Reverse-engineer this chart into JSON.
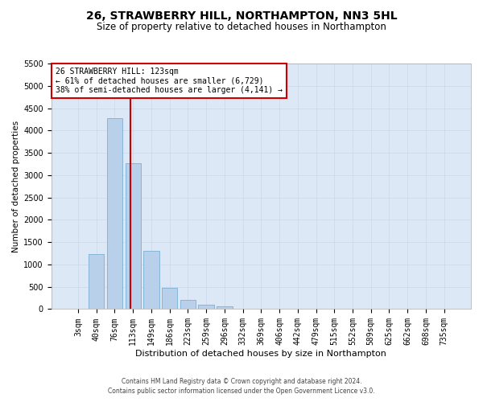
{
  "title_line1": "26, STRAWBERRY HILL, NORTHAMPTON, NN3 5HL",
  "title_line2": "Size of property relative to detached houses in Northampton",
  "xlabel": "Distribution of detached houses by size in Northampton",
  "ylabel": "Number of detached properties",
  "footer_line1": "Contains HM Land Registry data © Crown copyright and database right 2024.",
  "footer_line2": "Contains public sector information licensed under the Open Government Licence v3.0.",
  "annotation_title": "26 STRAWBERRY HILL: 123sqm",
  "annotation_line2": "← 61% of detached houses are smaller (6,729)",
  "annotation_line3": "38% of semi-detached houses are larger (4,141) →",
  "bar_labels": [
    "3sqm",
    "40sqm",
    "76sqm",
    "113sqm",
    "149sqm",
    "186sqm",
    "223sqm",
    "259sqm",
    "296sqm",
    "332sqm",
    "369sqm",
    "406sqm",
    "442sqm",
    "479sqm",
    "515sqm",
    "552sqm",
    "589sqm",
    "625sqm",
    "662sqm",
    "698sqm",
    "735sqm"
  ],
  "bar_values": [
    0,
    1240,
    4280,
    3270,
    1300,
    480,
    210,
    100,
    70,
    0,
    0,
    0,
    0,
    0,
    0,
    0,
    0,
    0,
    0,
    0,
    0
  ],
  "bar_color": "#b8d0ea",
  "bar_edge_color": "#7bafd4",
  "vline_x": 2.85,
  "vline_color": "#cc0000",
  "ylim_max": 5500,
  "ytick_step": 500,
  "annotation_box_edgecolor": "#cc0000",
  "grid_color": "#c8d8e8",
  "bg_color": "#dce8f5",
  "figure_bg": "#ffffff",
  "title1_fontsize": 10,
  "title2_fontsize": 8.5,
  "xlabel_fontsize": 8,
  "ylabel_fontsize": 7.5,
  "tick_fontsize": 7,
  "ann_fontsize": 7,
  "footer_fontsize": 5.5
}
